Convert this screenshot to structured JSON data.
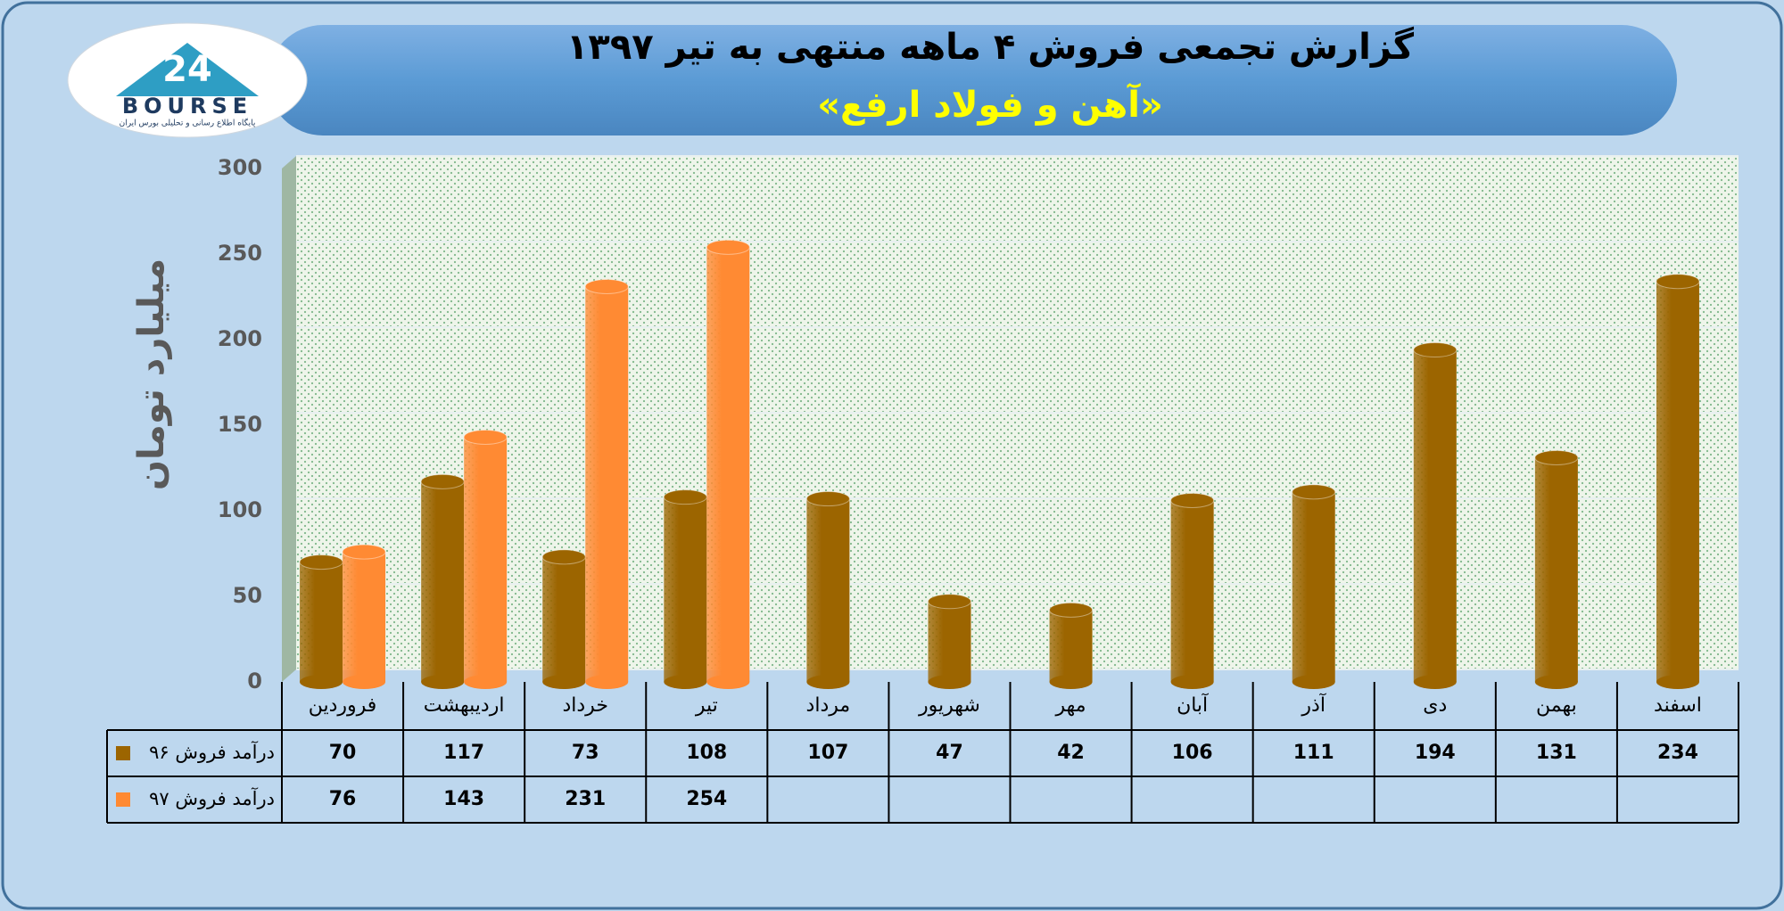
{
  "logo": {
    "number": "24",
    "name": "BOURSE",
    "caption": "پایگاه اطلاع رسانی و تحلیلی بورس ایران"
  },
  "chart_data": {
    "type": "bar",
    "title": "گزارش تجمعی فروش ۴ ماهه منتهی به تیر ۱۳۹۷",
    "subtitle": "«آهن و فولاد ارفع»",
    "y_label": "میلیارد تومان",
    "categories": [
      "فروردین",
      "اردیبهشت",
      "خرداد",
      "تیر",
      "مرداد",
      "شهریور",
      "مهر",
      "آبان",
      "آذر",
      "دی",
      "بهمن",
      "اسفند"
    ],
    "series": [
      {
        "name": "درآمد فروش ۹۶",
        "color": "#9c6500",
        "values": [
          70,
          117,
          73,
          108,
          107,
          47,
          42,
          106,
          111,
          194,
          131,
          234
        ]
      },
      {
        "name": "درآمد فروش ۹۷",
        "color": "#ff8a33",
        "values": [
          76,
          143,
          231,
          254,
          null,
          null,
          null,
          null,
          null,
          null,
          null,
          null
        ]
      }
    ],
    "ylim": [
      0,
      300
    ],
    "yticks": [
      0,
      50,
      100,
      150,
      200,
      250,
      300
    ],
    "grid": true
  }
}
